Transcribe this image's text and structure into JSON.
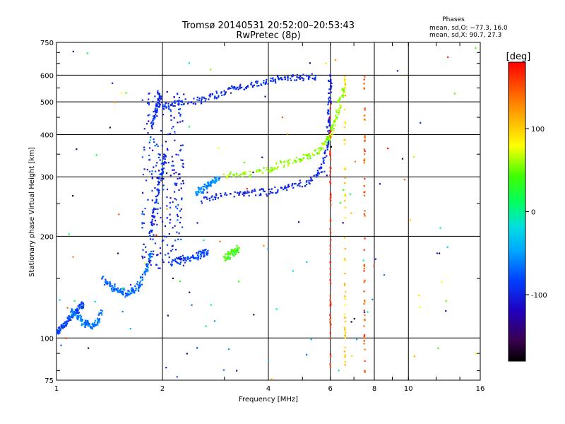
{
  "chart_data": {
    "type": "scatter",
    "title": "Tromsø 20140531 20:52:00–20:53:43",
    "subtitle": "RwPretec (8p)",
    "xlabel": "Frequency [MHz]",
    "ylabel": "Stationary phase Virtual Height [km]",
    "xscale": "log",
    "yscale": "log",
    "xlim": [
      1,
      16
    ],
    "ylim": [
      75,
      750
    ],
    "xticks": [
      1,
      2,
      4,
      6,
      8,
      10,
      16
    ],
    "xtick_labels": [
      "1",
      "2",
      "4",
      "6",
      "8",
      "10",
      "16"
    ],
    "yticks": [
      75,
      100,
      200,
      300,
      400,
      500,
      600,
      750
    ],
    "ytick_labels": [
      "75",
      "100",
      "200",
      "300",
      "400",
      "500",
      "600",
      "750"
    ],
    "grid": true,
    "phase_header": "Phases",
    "phase_stats": [
      "mean, sd,O: −77.3, 16.0",
      "mean, sd,X:  90.7, 27.3"
    ],
    "colorbar": {
      "label": "[deg]",
      "range": [
        -180,
        180
      ],
      "ticks": [
        100,
        0,
        -100
      ],
      "tick_labels": [
        "100",
        "0",
        "-100"
      ]
    },
    "traces": [
      {
        "id": "e-region-blue",
        "phase": -85,
        "points": [
          [
            1.0,
            104
          ],
          [
            1.02,
            106
          ],
          [
            1.05,
            109
          ],
          [
            1.08,
            113
          ],
          [
            1.12,
            117
          ],
          [
            1.16,
            122
          ],
          [
            1.19,
            126
          ]
        ]
      },
      {
        "id": "e-region-cyan",
        "phase": -65,
        "points": [
          [
            1.1,
            120
          ],
          [
            1.14,
            116
          ],
          [
            1.18,
            112
          ],
          [
            1.22,
            110
          ],
          [
            1.26,
            109
          ],
          [
            1.3,
            111
          ],
          [
            1.35,
            120
          ]
        ]
      },
      {
        "id": "low-cyan-arc",
        "phase": -70,
        "points": [
          [
            1.35,
            150
          ],
          [
            1.42,
            142
          ],
          [
            1.5,
            138
          ],
          [
            1.58,
            136
          ],
          [
            1.65,
            138
          ],
          [
            1.72,
            143
          ],
          [
            1.8,
            160
          ],
          [
            1.85,
            180
          ]
        ]
      },
      {
        "id": "f1-cusp-blue",
        "phase": -95,
        "points": [
          [
            1.85,
            200
          ],
          [
            1.9,
            240
          ],
          [
            1.95,
            280
          ],
          [
            2.0,
            320
          ],
          [
            2.05,
            360
          ]
        ]
      },
      {
        "id": "rising-blue",
        "phase": -95,
        "points": [
          [
            1.85,
            420
          ],
          [
            1.9,
            460
          ],
          [
            1.95,
            500
          ],
          [
            1.98,
            530
          ]
        ]
      },
      {
        "id": "f2-lower-blue",
        "phase": -100,
        "points": [
          [
            2.6,
            258
          ],
          [
            3.0,
            264
          ],
          [
            3.5,
            268
          ],
          [
            4.0,
            272
          ],
          [
            4.5,
            278
          ],
          [
            5.0,
            285
          ],
          [
            5.5,
            300
          ],
          [
            5.8,
            340
          ],
          [
            5.9,
            400
          ],
          [
            5.95,
            470
          ],
          [
            6.0,
            540
          ],
          [
            6.0,
            600
          ]
        ]
      },
      {
        "id": "f2-upper-blue",
        "phase": -95,
        "points": [
          [
            2.0,
            485
          ],
          [
            2.2,
            495
          ],
          [
            2.5,
            505
          ],
          [
            2.8,
            520
          ],
          [
            3.1,
            540
          ],
          [
            3.5,
            560
          ],
          [
            4.0,
            575
          ],
          [
            4.5,
            585
          ],
          [
            5.0,
            590
          ],
          [
            5.5,
            595
          ]
        ]
      },
      {
        "id": "f2-x-mode",
        "phase": 60,
        "points": [
          [
            3.0,
            300
          ],
          [
            3.5,
            305
          ],
          [
            4.0,
            315
          ],
          [
            4.5,
            330
          ],
          [
            5.0,
            340
          ],
          [
            5.5,
            355
          ],
          [
            5.8,
            380
          ],
          [
            6.0,
            400
          ],
          [
            6.2,
            440
          ],
          [
            6.4,
            500
          ],
          [
            6.6,
            560
          ]
        ]
      },
      {
        "id": "cyan-2.7",
        "phase": -60,
        "points": [
          [
            2.5,
            270
          ],
          [
            2.6,
            275
          ],
          [
            2.7,
            285
          ],
          [
            2.8,
            290
          ],
          [
            2.9,
            300
          ]
        ]
      },
      {
        "id": "green-yellow-3.1",
        "phase": 40,
        "points": [
          [
            3.0,
            172
          ],
          [
            3.1,
            176
          ],
          [
            3.2,
            180
          ],
          [
            3.3,
            183
          ]
        ]
      },
      {
        "id": "blue-2.4",
        "phase": -85,
        "points": [
          [
            2.1,
            168
          ],
          [
            2.3,
            170
          ],
          [
            2.5,
            175
          ],
          [
            2.6,
            178
          ],
          [
            2.7,
            180
          ]
        ]
      }
    ],
    "vertical_interference": [
      {
        "freq": 7.5,
        "phase": 150,
        "ymin": 78,
        "ymax": 630
      },
      {
        "freq": 6.6,
        "phase": 100,
        "ymin": 80,
        "ymax": 600
      },
      {
        "freq": 6.0,
        "phase": 160,
        "ymin": 80,
        "ymax": 500
      }
    ]
  }
}
